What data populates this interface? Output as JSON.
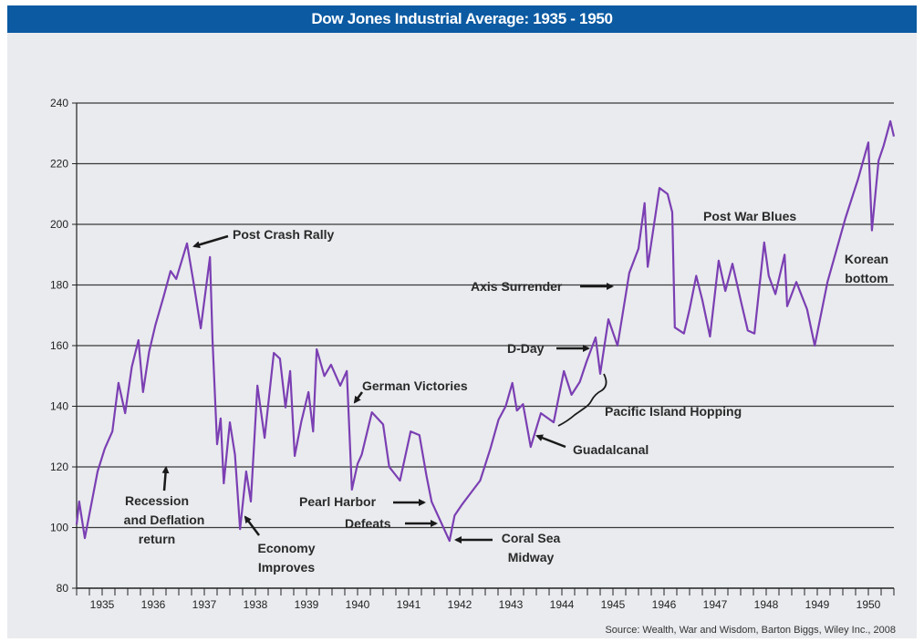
{
  "chart_data": {
    "type": "line",
    "title": "Dow Jones Industrial Average: 1935 - 1950",
    "xlabel": "",
    "ylabel": "",
    "xlim": [
      1935,
      1951
    ],
    "ylim": [
      80,
      240
    ],
    "x_ticks": [
      "1935",
      "1936",
      "1937",
      "1938",
      "1939",
      "1940",
      "1941",
      "1942",
      "1943",
      "1944",
      "1945",
      "1946",
      "1947",
      "1948",
      "1949",
      "1950"
    ],
    "y_ticks": [
      80,
      100,
      120,
      140,
      160,
      180,
      200,
      220,
      240
    ],
    "grid": "horizontal",
    "line_color": "#7b3fb3",
    "series": [
      {
        "points": [
          [
            1935.0,
            101
          ],
          [
            1935.05,
            108.6
          ],
          [
            1935.16,
            96.5
          ],
          [
            1935.41,
            118.5
          ],
          [
            1935.55,
            126
          ],
          [
            1935.7,
            131.7
          ],
          [
            1935.82,
            147.7
          ],
          [
            1935.95,
            137.7
          ],
          [
            1936.08,
            153
          ],
          [
            1936.21,
            161.8
          ],
          [
            1936.3,
            144.7
          ],
          [
            1936.42,
            158
          ],
          [
            1936.54,
            166.6
          ],
          [
            1936.7,
            176
          ],
          [
            1936.84,
            184.6
          ],
          [
            1936.95,
            182
          ],
          [
            1937.16,
            193.7
          ],
          [
            1937.29,
            180.8
          ],
          [
            1937.43,
            165.7
          ],
          [
            1937.61,
            189.2
          ],
          [
            1937.66,
            161.8
          ],
          [
            1937.75,
            127.5
          ],
          [
            1937.82,
            136
          ],
          [
            1937.88,
            114.6
          ],
          [
            1938.0,
            134.7
          ],
          [
            1938.1,
            124
          ],
          [
            1938.2,
            99.5
          ],
          [
            1938.32,
            118.5
          ],
          [
            1938.41,
            108.6
          ],
          [
            1938.54,
            146.8
          ],
          [
            1938.68,
            129.6
          ],
          [
            1938.86,
            157.6
          ],
          [
            1938.98,
            155.7
          ],
          [
            1939.09,
            139.6
          ],
          [
            1939.18,
            151.6
          ],
          [
            1939.27,
            123.6
          ],
          [
            1939.4,
            135
          ],
          [
            1939.54,
            144.7
          ],
          [
            1939.63,
            131.7
          ],
          [
            1939.7,
            158.8
          ],
          [
            1939.85,
            150
          ],
          [
            1939.98,
            153.7
          ],
          [
            1940.16,
            146.8
          ],
          [
            1940.29,
            151.6
          ],
          [
            1940.39,
            112.5
          ],
          [
            1940.5,
            121
          ],
          [
            1940.58,
            124
          ],
          [
            1940.78,
            138
          ],
          [
            1941.0,
            134
          ],
          [
            1941.12,
            120
          ],
          [
            1941.33,
            115.5
          ],
          [
            1941.54,
            131.7
          ],
          [
            1941.71,
            130.5
          ],
          [
            1941.85,
            117
          ],
          [
            1941.95,
            108.5
          ],
          [
            1942.3,
            95.6
          ],
          [
            1942.4,
            104
          ],
          [
            1942.55,
            107.7
          ],
          [
            1942.9,
            115.5
          ],
          [
            1943.1,
            126
          ],
          [
            1943.26,
            135.6
          ],
          [
            1943.4,
            140
          ],
          [
            1943.53,
            147.7
          ],
          [
            1943.62,
            138.6
          ],
          [
            1943.74,
            140.7
          ],
          [
            1943.89,
            126.6
          ],
          [
            1944.09,
            137.7
          ],
          [
            1944.34,
            134.7
          ],
          [
            1944.54,
            151.6
          ],
          [
            1944.69,
            143.8
          ],
          [
            1944.85,
            148
          ],
          [
            1944.98,
            154.6
          ],
          [
            1945.16,
            162.7
          ],
          [
            1945.25,
            150.7
          ],
          [
            1945.41,
            168.7
          ],
          [
            1945.59,
            160
          ],
          [
            1945.82,
            184
          ],
          [
            1946.0,
            192
          ],
          [
            1946.12,
            207
          ],
          [
            1946.18,
            186
          ],
          [
            1946.41,
            212
          ],
          [
            1946.57,
            210
          ],
          [
            1946.66,
            204
          ],
          [
            1946.71,
            166
          ],
          [
            1946.89,
            164
          ],
          [
            1947.0,
            172
          ],
          [
            1947.13,
            183
          ],
          [
            1947.25,
            175
          ],
          [
            1947.4,
            163
          ],
          [
            1947.57,
            188
          ],
          [
            1947.7,
            178
          ],
          [
            1947.84,
            187
          ],
          [
            1948.0,
            175
          ],
          [
            1948.14,
            165
          ],
          [
            1948.27,
            164
          ],
          [
            1948.46,
            194
          ],
          [
            1948.55,
            183
          ],
          [
            1948.68,
            177
          ],
          [
            1948.86,
            190
          ],
          [
            1948.91,
            173
          ],
          [
            1949.09,
            181
          ],
          [
            1949.3,
            172
          ],
          [
            1949.45,
            160
          ],
          [
            1949.7,
            181
          ],
          [
            1949.85,
            190
          ],
          [
            1950.05,
            202
          ],
          [
            1950.3,
            215
          ],
          [
            1950.5,
            227
          ],
          [
            1950.57,
            198
          ],
          [
            1950.7,
            221
          ],
          [
            1950.8,
            226
          ],
          [
            1950.93,
            234
          ],
          [
            1951.0,
            229
          ]
        ]
      }
    ],
    "annotations": {
      "post_crash_rally": "Post Crash Rally",
      "recession_1": "Recession",
      "recession_2": "and Deflation",
      "recession_3": "return",
      "economy_1": "Economy",
      "economy_2": "Improves",
      "german_victories": "German Victories",
      "pearl_harbor": "Pearl Harbor",
      "defeats": "Defeats",
      "coral_sea_1": "Coral Sea",
      "coral_sea_2": "Midway",
      "guadalcanal": "Guadalcanal",
      "pacific": "Pacific Island Hopping",
      "d_day": "D-Day",
      "axis_surrender": "Axis Surrender",
      "post_war_blues": "Post War Blues",
      "korean_1": "Korean",
      "korean_2": "bottom"
    },
    "source": "Source: Wealth, War and Wisdom, Barton Biggs, Wiley Inc., 2008"
  }
}
